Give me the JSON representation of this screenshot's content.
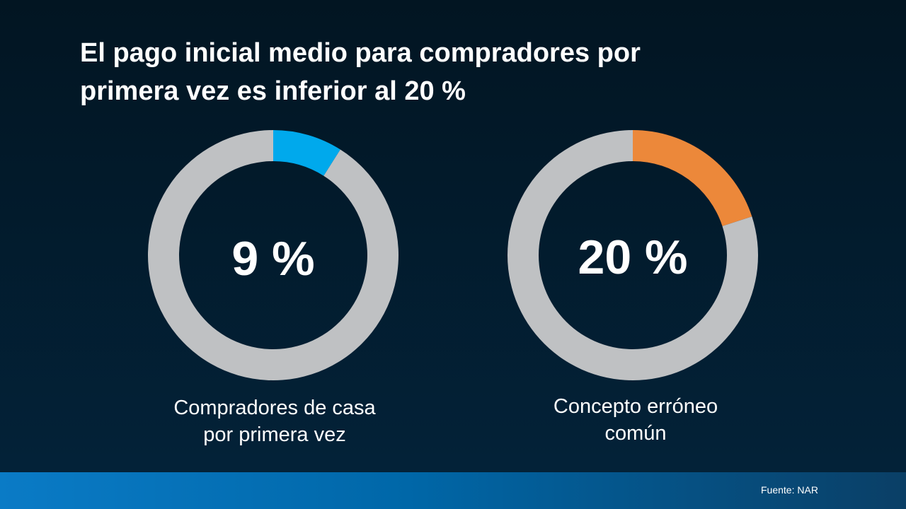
{
  "title": {
    "line1": "El pago inicial medio para compradores por",
    "line2": "primera vez es inferior al 20 %"
  },
  "chart_data": [
    {
      "type": "pie",
      "variant": "donut",
      "center_label": "9 %",
      "label_lines": [
        "Compradores de casa",
        "por primera vez"
      ],
      "slices": [
        {
          "value": 9,
          "color": "#00a9ec"
        },
        {
          "value": 91,
          "color": "#bfc1c3"
        }
      ]
    },
    {
      "type": "pie",
      "variant": "donut",
      "center_label": "20 %",
      "label_lines": [
        "Concepto erróneo",
        "común"
      ],
      "slices": [
        {
          "value": 20,
          "color": "#ec883a"
        },
        {
          "value": 80,
          "color": "#bfc1c3"
        }
      ]
    }
  ],
  "footer": {
    "source": "Fuente: NAR"
  },
  "colors": {
    "background_top": "#021522",
    "background_bottom": "#03233a",
    "footer_bar": "#0a7bc6"
  }
}
